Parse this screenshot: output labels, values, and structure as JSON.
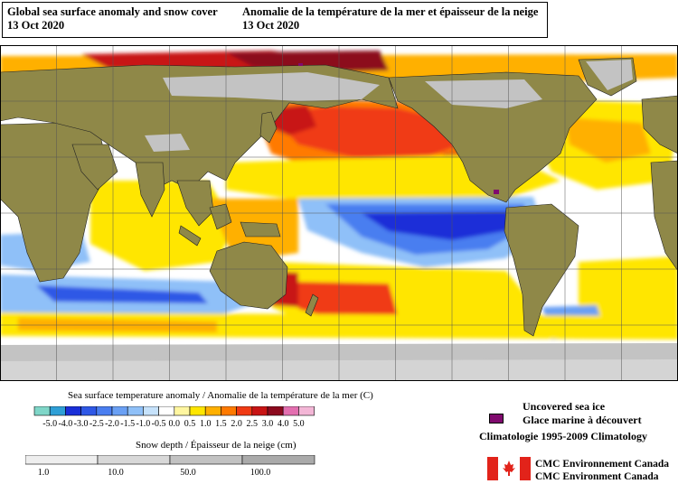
{
  "header": {
    "title_en": "Global sea surface anomaly and snow cover",
    "date_en": "13 Oct 2020",
    "title_fr": "Anomalie de la température de la mer et épaisseur de la neige",
    "date_fr": "13 Oct 2020"
  },
  "map": {
    "projection": "equirectangular",
    "center_longitude": "180",
    "colors": {
      "land": "#8f8848",
      "snow": "#c3c3c3",
      "ocean_neutral": "#ffffff",
      "grid": "#555555"
    }
  },
  "sst_legend": {
    "title": "Sea surface temperature anomaly / Anomalie de la température de la mer (C)",
    "bins": [
      {
        "label": "-5.0",
        "color": "#7fd6c8"
      },
      {
        "label": "-4.0",
        "color": "#2f9fd6"
      },
      {
        "label": "-3.0",
        "color": "#1a2fd8"
      },
      {
        "label": "-2.5",
        "color": "#2f58e6"
      },
      {
        "label": "-2.0",
        "color": "#4a7ef0"
      },
      {
        "label": "-1.5",
        "color": "#6aa0f4"
      },
      {
        "label": "-1.0",
        "color": "#8fc0f8"
      },
      {
        "label": "-0.5",
        "color": "#c6e2fb"
      },
      {
        "label": "0.0",
        "color": "#ffffff"
      },
      {
        "label": "0.5",
        "color": "#fff6a0"
      },
      {
        "label": "1.0",
        "color": "#ffe600"
      },
      {
        "label": "1.5",
        "color": "#ffb000"
      },
      {
        "label": "2.0",
        "color": "#ff7a00"
      },
      {
        "label": "2.5",
        "color": "#f03a14"
      },
      {
        "label": "3.0",
        "color": "#c81414"
      },
      {
        "label": "4.0",
        "color": "#8c0a1e"
      },
      {
        "label": "5.0",
        "color": "#e36fb0"
      },
      {
        "label": "",
        "color": "#f3b6d6"
      }
    ]
  },
  "snow_legend": {
    "title": "Snow depth / Épaisseur de la neige (cm)",
    "bins": [
      {
        "label": "1.0",
        "color": "#eeeeee"
      },
      {
        "label": "10.0",
        "color": "#d8d8d8"
      },
      {
        "label": "50.0",
        "color": "#c2c2c2"
      },
      {
        "label": "100.0",
        "color": "#aaaaaa"
      }
    ]
  },
  "sea_ice_legend": {
    "label_en": "Uncovered sea ice",
    "label_fr": "Glace marine à découvert",
    "color": "#800a6e"
  },
  "climatology": "Climatologie 1995-2009 Climatology",
  "agency": {
    "line1": "CMC Environnement Canada",
    "line2": "CMC Environment Canada",
    "flag": "canada-flag-icon"
  }
}
